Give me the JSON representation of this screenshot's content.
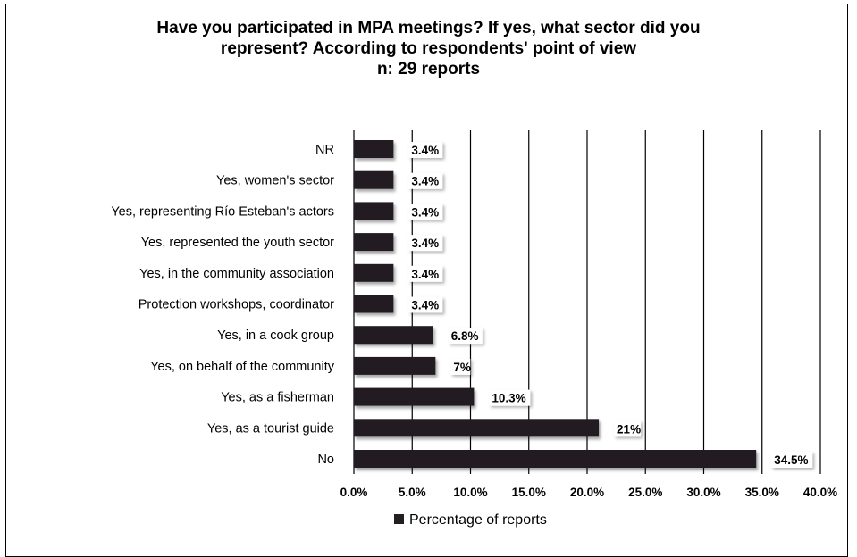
{
  "chart_data": {
    "type": "bar",
    "orientation": "horizontal",
    "title_lines": [
      "Have you participated in MPA meetings? If yes, what sector did you",
      "represent? According to respondents' point of view",
      "n: 29 reports"
    ],
    "categories": [
      "NR",
      "Yes, women's sector",
      "Yes, representing Río Esteban's actors",
      "Yes, represented the youth sector",
      "Yes, in the community association",
      "Protection workshops, coordinator",
      "Yes, in a cook group",
      "Yes, on behalf of the community",
      "Yes, as a fisherman",
      "Yes, as a tourist guide",
      "No"
    ],
    "series": [
      {
        "name": "Percentage of reports",
        "values": [
          3.4,
          3.4,
          3.4,
          3.4,
          3.4,
          3.4,
          6.8,
          7,
          10.3,
          21,
          34.5
        ],
        "labels": [
          "3.4%",
          "3.4%",
          "3.4%",
          "3.4%",
          "3.4%",
          "3.4%",
          "6.8%",
          "7%",
          "10.3%",
          "21%",
          "34.5%"
        ]
      }
    ],
    "xlim": [
      0,
      40
    ],
    "x_ticks": [
      0,
      5,
      10,
      15,
      20,
      25,
      30,
      35,
      40
    ],
    "x_tick_labels": [
      "0.0%",
      "5.0%",
      "10.0%",
      "15.0%",
      "20.0%",
      "25.0%",
      "30.0%",
      "35.0%",
      "40.0%"
    ],
    "grid": "vertical",
    "legend": "bottom",
    "bar_color": "#231f20"
  }
}
